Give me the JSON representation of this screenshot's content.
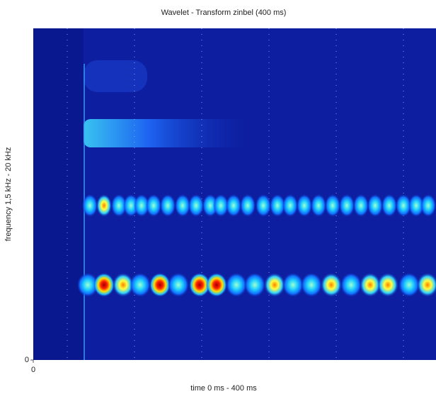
{
  "chart_data": {
    "type": "image",
    "title": "Wavelet - Transform zinbel (400 ms)",
    "xlabel": "time 0 ms - 400 ms",
    "ylabel": "frequency 1,5 kHz - 20 kHz",
    "xlim": [
      0,
      400
    ],
    "xticks": [
      0
    ],
    "ylim": [
      0,
      20
    ],
    "yticks": [
      0
    ]
  }
}
